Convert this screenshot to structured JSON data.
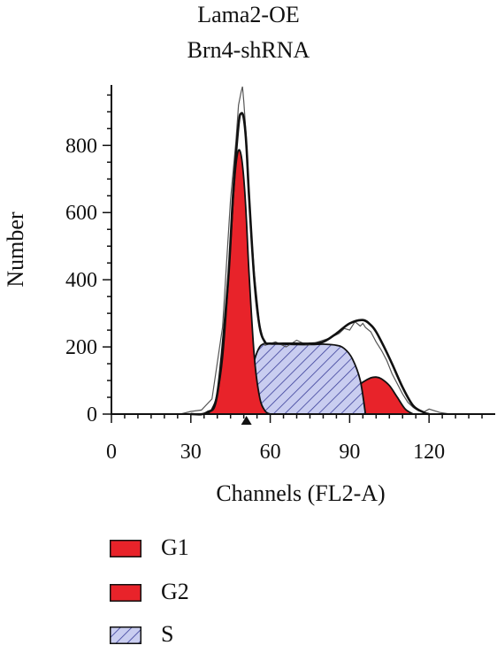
{
  "chart_data": {
    "type": "area",
    "title_lines": [
      "Lama2-OE",
      "Brn4-shRNA"
    ],
    "xlabel": "Channels (FL2-A)",
    "ylabel": "Number",
    "xlim": [
      0,
      145
    ],
    "ylim": [
      0,
      980
    ],
    "x_ticks": [
      0,
      30,
      60,
      90,
      120
    ],
    "y_ticks": [
      0,
      200,
      400,
      600,
      800
    ],
    "marker_x": 51,
    "colors": {
      "g1": "#e8232a",
      "g2": "#e8232a",
      "s_fill": "#c9cdf0",
      "s_hatch": "#3b3f9a",
      "outline": "#111111",
      "raw": "#555555"
    },
    "series": [
      {
        "name": "G1",
        "x": [
          36,
          38,
          40,
          42,
          44,
          46,
          47,
          48,
          49,
          50,
          51,
          52,
          54,
          56,
          58,
          60
        ],
        "values": [
          0,
          15,
          60,
          170,
          380,
          640,
          740,
          785,
          770,
          700,
          580,
          420,
          170,
          50,
          10,
          0
        ]
      },
      {
        "name": "G2",
        "x": [
          70,
          75,
          80,
          85,
          90,
          95,
          98,
          100,
          102,
          105,
          108,
          111,
          114
        ],
        "values": [
          0,
          8,
          20,
          40,
          65,
          95,
          108,
          110,
          105,
          85,
          50,
          15,
          0
        ]
      },
      {
        "name": "S",
        "x": [
          48,
          50,
          52,
          54,
          56,
          58,
          60,
          65,
          70,
          75,
          80,
          85,
          88,
          91,
          94,
          96
        ],
        "values": [
          0,
          30,
          90,
          160,
          200,
          210,
          210,
          208,
          207,
          207,
          208,
          205,
          195,
          165,
          100,
          0
        ]
      },
      {
        "name": "Fit",
        "x": [
          30,
          36,
          40,
          44,
          46,
          48,
          49,
          50,
          51,
          52,
          54,
          56,
          58,
          60,
          65,
          70,
          75,
          80,
          85,
          90,
          95,
          98,
          100,
          103,
          106,
          110,
          114,
          118,
          120
        ],
        "values": [
          0,
          5,
          60,
          390,
          660,
          860,
          895,
          880,
          800,
          650,
          400,
          260,
          215,
          210,
          210,
          210,
          210,
          215,
          240,
          270,
          280,
          265,
          245,
          200,
          150,
          80,
          25,
          5,
          0
        ]
      },
      {
        "name": "Raw data",
        "x": [
          26,
          30,
          34,
          38,
          42,
          45,
          47,
          48,
          49,
          49.5,
          50,
          51,
          52,
          54,
          56,
          58,
          62,
          66,
          70,
          74,
          78,
          82,
          86,
          88,
          90,
          92,
          94,
          95,
          96,
          98,
          100,
          102,
          104,
          106,
          108,
          110,
          112,
          114,
          116,
          118,
          120,
          124,
          128
        ],
        "values": [
          0,
          8,
          12,
          45,
          260,
          640,
          810,
          920,
          960,
          975,
          930,
          820,
          640,
          420,
          265,
          205,
          215,
          200,
          220,
          205,
          215,
          225,
          240,
          255,
          250,
          275,
          262,
          270,
          258,
          245,
          215,
          190,
          160,
          120,
          90,
          60,
          35,
          20,
          10,
          6,
          15,
          5,
          0
        ]
      }
    ],
    "legend": [
      {
        "label": "G1",
        "style": "solid"
      },
      {
        "label": "G2",
        "style": "solid"
      },
      {
        "label": "S",
        "style": "hatch"
      }
    ]
  }
}
